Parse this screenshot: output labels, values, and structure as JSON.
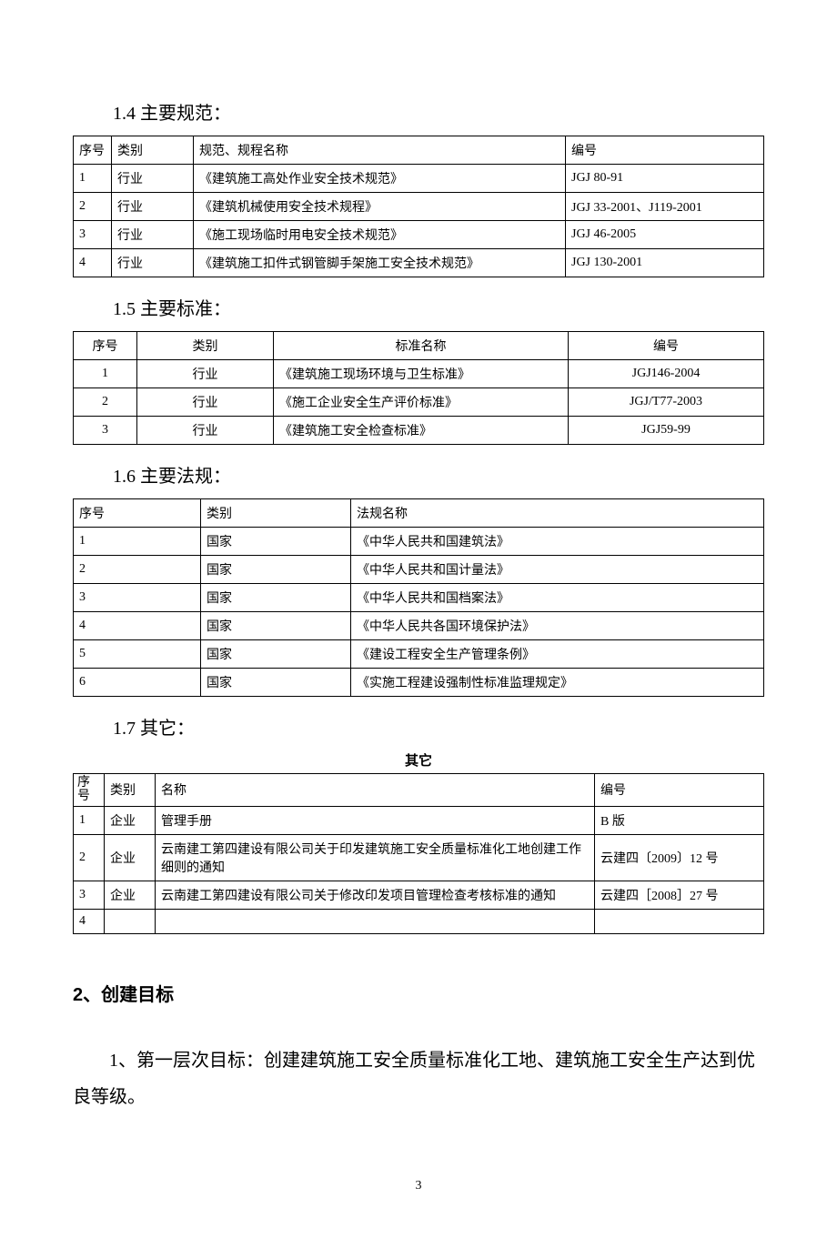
{
  "headings": {
    "h14": "1.4 主要规范：",
    "h15": "1.5 主要标准：",
    "h16": "1.6 主要法规：",
    "h17": "1.7 其它：",
    "h2": "2、创建目标"
  },
  "table1": {
    "headers": {
      "c1": "序号",
      "c2": "类别",
      "c3": "规范、规程名称",
      "c4": "编号"
    },
    "rows": [
      {
        "n": "1",
        "cat": "行业",
        "name": "《建筑施工高处作业安全技术规范》",
        "code": "JGJ 80-91"
      },
      {
        "n": "2",
        "cat": "行业",
        "name": "《建筑机械使用安全技术规程》",
        "code": "JGJ 33-2001、J119-2001"
      },
      {
        "n": "3",
        "cat": "行业",
        "name": "《施工现场临时用电安全技术规范》",
        "code": "JGJ 46-2005"
      },
      {
        "n": "4",
        "cat": "行业",
        "name": "《建筑施工扣件式钢管脚手架施工安全技术规范》",
        "code": "JGJ 130-2001"
      }
    ]
  },
  "table2": {
    "headers": {
      "c1": "序号",
      "c2": "类别",
      "c3": "标准名称",
      "c4": "编号"
    },
    "rows": [
      {
        "n": "1",
        "cat": "行业",
        "name": "《建筑施工现场环境与卫生标准》",
        "code": "JGJ146-2004"
      },
      {
        "n": "2",
        "cat": "行业",
        "name": "《施工企业安全生产评价标准》",
        "code": "JGJ/T77-2003"
      },
      {
        "n": "3",
        "cat": "行业",
        "name": "《建筑施工安全检查标准》",
        "code": "JGJ59-99"
      }
    ]
  },
  "table3": {
    "headers": {
      "c1": "序号",
      "c2": "类别",
      "c3": "法规名称"
    },
    "rows": [
      {
        "n": "1",
        "cat": "国家",
        "name": "《中华人民共和国建筑法》"
      },
      {
        "n": "2",
        "cat": "国家",
        "name": "《中华人民共和国计量法》"
      },
      {
        "n": "3",
        "cat": "国家",
        "name": "《中华人民共和国档案法》"
      },
      {
        "n": "4",
        "cat": "国家",
        "name": "《中华人民共各国环境保护法》"
      },
      {
        "n": "5",
        "cat": "国家",
        "name": "《建设工程安全生产管理条例》"
      },
      {
        "n": "6",
        "cat": "国家",
        "name": "《实施工程建设强制性标准监理规定》"
      }
    ]
  },
  "table4": {
    "caption": "其它",
    "headers": {
      "c1": "序号",
      "c2": "类别",
      "c3": "名称",
      "c4": "编号"
    },
    "rows": [
      {
        "n": "1",
        "cat": "企业",
        "name": "管理手册",
        "code": "B 版"
      },
      {
        "n": "2",
        "cat": "企业",
        "name": "云南建工第四建设有限公司关于印发建筑施工安全质量标准化工地创建工作细则的通知",
        "code": "云建四〔2009〕12 号"
      },
      {
        "n": "3",
        "cat": "企业",
        "name": "云南建工第四建设有限公司关于修改印发项目管理检查考核标准的通知",
        "code": "云建四［2008］27 号"
      },
      {
        "n": "4",
        "cat": "",
        "name": "",
        "code": ""
      }
    ]
  },
  "paragraphs": {
    "p1": "1、第一层次目标：创建建筑施工安全质量标准化工地、建筑施工安全生产达到优良等级。"
  },
  "pageNumber": "3"
}
